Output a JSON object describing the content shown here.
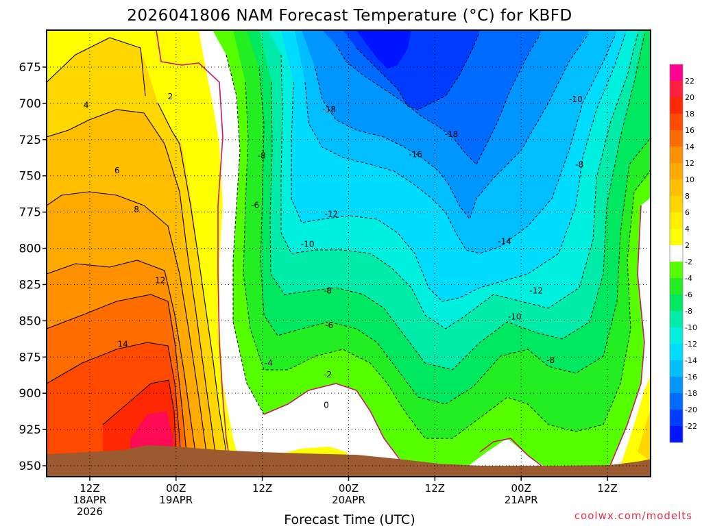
{
  "chart_data": {
    "type": "heatmap",
    "title": "2026041806 NAM Forecast Temperature (°C) for KBFD",
    "xlabel": "Forecast Time (UTC)",
    "ylabel": "",
    "credit": "coolwx.com/modelts",
    "x_hours_range": [
      0,
      84
    ],
    "y_pressure_range": [
      950,
      650
    ],
    "y_ticks": [
      675,
      700,
      725,
      750,
      775,
      800,
      825,
      850,
      875,
      900,
      925,
      950
    ],
    "x_ticks": [
      {
        "hour": 6,
        "lines": [
          "12Z",
          "18APR",
          "2026"
        ]
      },
      {
        "hour": 18,
        "lines": [
          "00Z",
          "19APR"
        ]
      },
      {
        "hour": 30,
        "lines": [
          "12Z"
        ]
      },
      {
        "hour": 42,
        "lines": [
          "00Z",
          "20APR"
        ]
      },
      {
        "hour": 54,
        "lines": [
          "12Z"
        ]
      },
      {
        "hour": 66,
        "lines": [
          "00Z",
          "21APR"
        ]
      },
      {
        "hour": 78,
        "lines": [
          "12Z"
        ]
      }
    ],
    "colorbar": {
      "levels": [
        22,
        20,
        18,
        16,
        14,
        12,
        10,
        8,
        6,
        4,
        2,
        -2,
        -4,
        -6,
        -8,
        -10,
        -12,
        -14,
        -16,
        -18,
        -20,
        -22
      ],
      "colors": [
        "#ff0090",
        "#ff2040",
        "#ff2800",
        "#ff4a00",
        "#ff6c00",
        "#ff9000",
        "#ffaa00",
        "#ffbf00",
        "#ffd700",
        "#ffee00",
        "#ffff00",
        "#ffffff",
        "#55ff00",
        "#22ee22",
        "#00e860",
        "#00eca8",
        "#00f0e0",
        "#00dcff",
        "#00beff",
        "#0096ff",
        "#006cff",
        "#003cff",
        "#0014ff"
      ]
    },
    "contour_labels": [
      {
        "value": "4",
        "hour": 5.5,
        "p": 701
      },
      {
        "value": "2",
        "hour": 17.2,
        "p": 695
      },
      {
        "value": "6",
        "hour": 9.8,
        "p": 746
      },
      {
        "value": "8",
        "hour": 12.5,
        "p": 773
      },
      {
        "value": "12",
        "hour": 15.8,
        "p": 822
      },
      {
        "value": "14",
        "hour": 10.6,
        "p": 866
      },
      {
        "value": "-8",
        "hour": 29.9,
        "p": 736
      },
      {
        "value": "-6",
        "hour": 29.0,
        "p": 770
      },
      {
        "value": "-4",
        "hour": 30.9,
        "p": 879
      },
      {
        "value": "-18",
        "hour": 39.3,
        "p": 704
      },
      {
        "value": "-18",
        "hour": 56.3,
        "p": 721
      },
      {
        "value": "-16",
        "hour": 51.3,
        "p": 735
      },
      {
        "value": "-12",
        "hour": 39.6,
        "p": 776
      },
      {
        "value": "-10",
        "hour": 36.3,
        "p": 797
      },
      {
        "value": "-8",
        "hour": 39.1,
        "p": 829
      },
      {
        "value": "-6",
        "hour": 39.3,
        "p": 853
      },
      {
        "value": "-2",
        "hour": 39.1,
        "p": 887
      },
      {
        "value": "0",
        "hour": 38.9,
        "p": 908
      },
      {
        "value": "-14",
        "hour": 63.7,
        "p": 795
      },
      {
        "value": "-12",
        "hour": 68.1,
        "p": 829
      },
      {
        "value": "-10",
        "hour": 65.1,
        "p": 847
      },
      {
        "value": "-8",
        "hour": 70.1,
        "p": 877
      },
      {
        "value": "-10",
        "hour": 73.6,
        "p": 697
      },
      {
        "value": "-8",
        "hour": 74.1,
        "p": 742
      }
    ]
  }
}
